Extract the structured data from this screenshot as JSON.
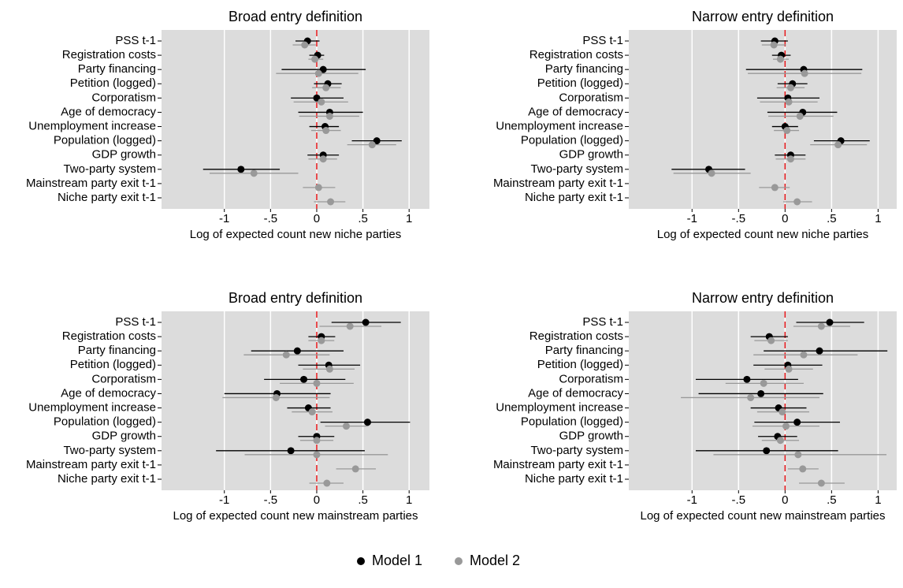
{
  "chart_data": [
    {
      "type": "dot",
      "title": "Broad entry definition",
      "xlabel": "Log of expected count new niche parties",
      "categories": [
        "PSS t-1",
        "Registration costs",
        "Party financing",
        "Petition (logged)",
        "Corporatism",
        "Age of democracy",
        "Unemployment increase",
        "Population (logged)",
        "GDP growth",
        "Two-party system",
        "Mainstream party exit t-1",
        "Niche party exit t-1"
      ],
      "series": [
        {
          "name": "Model 1",
          "color": "#000000",
          "values": [
            -0.1,
            0.01,
            0.07,
            0.12,
            0.0,
            0.14,
            0.09,
            0.65,
            0.07,
            -0.82,
            null,
            null
          ],
          "lower": [
            -0.23,
            -0.08,
            -0.38,
            -0.03,
            -0.28,
            -0.2,
            -0.08,
            0.38,
            -0.1,
            -1.23,
            null,
            null
          ],
          "upper": [
            0.03,
            0.08,
            0.53,
            0.27,
            0.29,
            0.5,
            0.24,
            0.92,
            0.24,
            -0.4,
            null,
            null
          ]
        },
        {
          "name": "Model 2",
          "color": "#999999",
          "values": [
            -0.13,
            -0.02,
            0.02,
            0.1,
            0.05,
            0.14,
            0.1,
            0.6,
            0.07,
            -0.68,
            0.02,
            0.15
          ],
          "lower": [
            -0.26,
            -0.09,
            -0.44,
            -0.05,
            -0.25,
            -0.19,
            -0.06,
            0.33,
            -0.09,
            -1.16,
            -0.15,
            -0.03
          ],
          "upper": [
            -0.01,
            0.07,
            0.45,
            0.26,
            0.34,
            0.46,
            0.26,
            0.86,
            0.22,
            -0.2,
            0.2,
            0.31
          ]
        }
      ],
      "xlim": [
        -1.68,
        1.22
      ],
      "xticks": [
        -1,
        {
          "value": -0.5,
          "label": "-.5"
        },
        0,
        {
          "value": 0.5,
          "label": ".5"
        },
        1
      ],
      "grid": true,
      "refline": 0,
      "refline_color": "#e8171b"
    },
    {
      "type": "dot",
      "title": "Narrow entry definition",
      "xlabel": "Log of expected count new niche parties",
      "categories": [
        "PSS t-1",
        "Registration costs",
        "Party financing",
        "Petition (logged)",
        "Corporatism",
        "Age of democracy",
        "Unemployment increase",
        "Population (logged)",
        "GDP growth",
        "Two-party system",
        "Mainstream party exit t-1",
        "Niche party exit t-1"
      ],
      "series": [
        {
          "name": "Model 1",
          "color": "#000000",
          "values": [
            -0.11,
            -0.04,
            0.2,
            0.08,
            0.03,
            0.19,
            0.0,
            0.6,
            0.06,
            -0.82,
            null,
            null
          ],
          "lower": [
            -0.26,
            -0.14,
            -0.42,
            -0.08,
            -0.3,
            -0.19,
            -0.14,
            0.31,
            -0.11,
            -1.22,
            null,
            null
          ],
          "upper": [
            0.03,
            0.06,
            0.83,
            0.24,
            0.37,
            0.56,
            0.14,
            0.91,
            0.22,
            -0.43,
            null,
            null
          ]
        },
        {
          "name": "Model 2",
          "color": "#999999",
          "values": [
            -0.12,
            -0.05,
            0.21,
            0.06,
            0.04,
            0.16,
            0.02,
            0.57,
            0.06,
            -0.79,
            -0.11,
            0.13
          ],
          "lower": [
            -0.25,
            -0.13,
            -0.4,
            -0.09,
            -0.27,
            -0.18,
            -0.12,
            0.27,
            -0.1,
            -1.2,
            -0.28,
            -0.02
          ],
          "upper": [
            0.01,
            0.04,
            0.82,
            0.21,
            0.35,
            0.52,
            0.15,
            0.88,
            0.22,
            -0.37,
            0.05,
            0.29
          ]
        }
      ],
      "xlim": [
        -1.68,
        1.2
      ],
      "xticks": [
        -1,
        {
          "value": -0.5,
          "label": "-.5"
        },
        0,
        {
          "value": 0.5,
          "label": ".5"
        },
        1
      ],
      "grid": true,
      "refline": 0,
      "refline_color": "#e8171b"
    },
    {
      "type": "dot",
      "title": "Broad entry definition",
      "xlabel": "Log of expected count new mainstream parties",
      "categories": [
        "PSS t-1",
        "Registration costs",
        "Party financing",
        "Petition (logged)",
        "Corporatism",
        "Age of democracy",
        "Unemployment increase",
        "Population (logged)",
        "GDP growth",
        "Two-party system",
        "Mainstream party exit t-1",
        "Niche party exit t-1"
      ],
      "series": [
        {
          "name": "Model 1",
          "color": "#000000",
          "values": [
            0.53,
            0.05,
            -0.21,
            0.13,
            -0.14,
            -0.43,
            -0.09,
            0.55,
            0.0,
            -0.28,
            null,
            null
          ],
          "lower": [
            0.16,
            -0.09,
            -0.71,
            -0.2,
            -0.57,
            -1.0,
            -0.32,
            0.04,
            -0.2,
            -1.09,
            null,
            null
          ],
          "upper": [
            0.91,
            0.2,
            0.29,
            0.47,
            0.31,
            0.15,
            0.15,
            1.01,
            0.19,
            0.52,
            null,
            null
          ]
        },
        {
          "name": "Model 2",
          "color": "#999999",
          "values": [
            0.36,
            0.05,
            -0.33,
            0.14,
            0.0,
            -0.44,
            -0.05,
            0.32,
            0.0,
            0.0,
            0.42,
            0.11
          ],
          "lower": [
            0.03,
            -0.09,
            -0.79,
            -0.15,
            -0.4,
            -1.02,
            -0.27,
            0.09,
            -0.18,
            -0.78,
            0.21,
            -0.08
          ],
          "upper": [
            0.7,
            0.19,
            0.14,
            0.41,
            0.4,
            0.14,
            0.17,
            0.56,
            0.18,
            0.77,
            0.64,
            0.29
          ]
        }
      ],
      "xlim": [
        -1.68,
        1.22
      ],
      "xticks": [
        -1,
        {
          "value": -0.5,
          "label": "-.5"
        },
        0,
        {
          "value": 0.5,
          "label": ".5"
        },
        1
      ],
      "grid": true,
      "refline": 0,
      "refline_color": "#e8171b"
    },
    {
      "type": "dot",
      "title": "Narrow entry definition",
      "xlabel": "Log of expected count new mainstream parties",
      "categories": [
        "PSS t-1",
        "Registration costs",
        "Party financing",
        "Petition (logged)",
        "Corporatism",
        "Age of democracy",
        "Unemployment increase",
        "Population (logged)",
        "GDP growth",
        "Two-party system",
        "Mainstream party exit t-1",
        "Niche party exit t-1"
      ],
      "series": [
        {
          "name": "Model 1",
          "color": "#000000",
          "values": [
            0.48,
            -0.17,
            0.37,
            0.03,
            -0.41,
            -0.26,
            -0.07,
            0.13,
            -0.08,
            -0.2,
            null,
            null
          ],
          "lower": [
            0.12,
            -0.37,
            -0.23,
            -0.34,
            -0.96,
            -0.93,
            -0.37,
            -0.33,
            -0.29,
            -0.96,
            null,
            null
          ],
          "upper": [
            0.85,
            0.03,
            1.1,
            0.4,
            0.14,
            0.41,
            0.23,
            0.59,
            0.13,
            0.57,
            null,
            null
          ]
        },
        {
          "name": "Model 2",
          "color": "#999999",
          "values": [
            0.39,
            -0.15,
            0.2,
            0.04,
            -0.23,
            -0.37,
            -0.03,
            0.01,
            -0.05,
            0.14,
            0.19,
            0.39
          ],
          "lower": [
            0.09,
            -0.33,
            -0.34,
            -0.22,
            -0.64,
            -1.12,
            -0.3,
            -0.35,
            -0.25,
            -0.77,
            0.03,
            0.15
          ],
          "upper": [
            0.7,
            0.03,
            0.78,
            0.3,
            0.2,
            0.37,
            0.26,
            0.37,
            0.15,
            1.09,
            0.36,
            0.64
          ]
        }
      ],
      "xlim": [
        -1.68,
        1.2
      ],
      "xticks": [
        -1,
        {
          "value": -0.5,
          "label": "-.5"
        },
        0,
        {
          "value": 0.5,
          "label": ".5"
        },
        1
      ],
      "grid": true,
      "refline": 0,
      "refline_color": "#e8171b"
    }
  ]
}
